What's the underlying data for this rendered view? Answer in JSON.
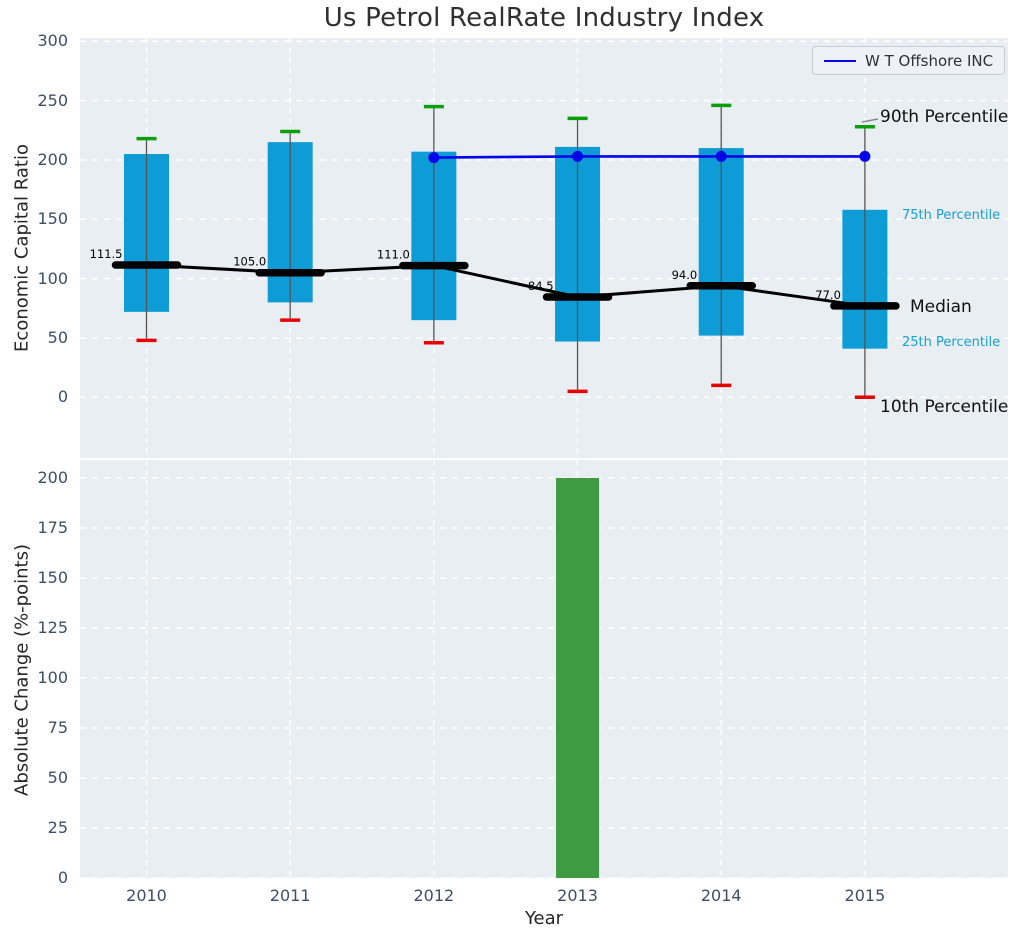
{
  "style": {
    "figure_bg": "#ffffff",
    "axes_bg": "#e9eef2",
    "grid_color": "#ffffff",
    "box_fill": "#0d9cd6",
    "cap_top_color": "#0a9e0a",
    "cap_bottom_color": "#e60000",
    "whisker_color": "#555555",
    "median_color": "#000000",
    "series_color": "#0505e8",
    "bar_color": "#3e9b41",
    "tick_color": "#3d4e66",
    "percentile_label_color": "#189fd4",
    "text_color": "#262626"
  },
  "chart_data": [
    {
      "type": "box-percentile-timeseries",
      "title": "Us Petrol RealRate Industry Index",
      "ylabel": "Economic Capital Ratio",
      "yticks": [
        0,
        50,
        100,
        150,
        200,
        250,
        300
      ],
      "ylim": [
        -51,
        303
      ],
      "grid": true,
      "legend_position": "upper right",
      "categories": [
        "2010",
        "2011",
        "2012",
        "2013",
        "2014",
        "2015"
      ],
      "boxes": [
        {
          "year": "2010",
          "p10": 48,
          "p25": 72,
          "median": 111.5,
          "p75": 205,
          "p90": 218,
          "median_label": "111.5"
        },
        {
          "year": "2011",
          "p10": 65,
          "p25": 80,
          "median": 105.0,
          "p75": 215,
          "p90": 224,
          "median_label": "105.0"
        },
        {
          "year": "2012",
          "p10": 46,
          "p25": 65,
          "median": 111.0,
          "p75": 207,
          "p90": 245,
          "median_label": "111.0"
        },
        {
          "year": "2013",
          "p10": 5,
          "p25": 47,
          "median": 84.5,
          "p75": 211,
          "p90": 235,
          "median_label": "84.5"
        },
        {
          "year": "2014",
          "p10": 10,
          "p25": 52,
          "median": 94.0,
          "p75": 210,
          "p90": 246,
          "median_label": "94.0"
        },
        {
          "year": "2015",
          "p10": 0,
          "p25": 41,
          "median": 77.0,
          "p75": 158,
          "p90": 228,
          "median_label": "77.0"
        }
      ],
      "series": [
        {
          "name": "W T Offshore INC",
          "x": [
            "2012",
            "2013",
            "2014",
            "2015"
          ],
          "values": [
            202,
            203,
            203,
            203
          ]
        }
      ],
      "side_labels": {
        "p90": "90th Percentile",
        "p75": "75th Percentile",
        "median": "Median",
        "p25": "25th Percentile",
        "p10": "10th Percentile"
      }
    },
    {
      "type": "bar",
      "ylabel": "Absolute Change (%-points)",
      "xlabel": "Year",
      "yticks": [
        0,
        25,
        50,
        75,
        100,
        125,
        150,
        175,
        200
      ],
      "ylim": [
        0,
        209
      ],
      "grid": true,
      "categories": [
        "2010",
        "2011",
        "2012",
        "2013",
        "2014",
        "2015"
      ],
      "values": [
        null,
        null,
        null,
        200,
        null,
        null
      ]
    }
  ]
}
